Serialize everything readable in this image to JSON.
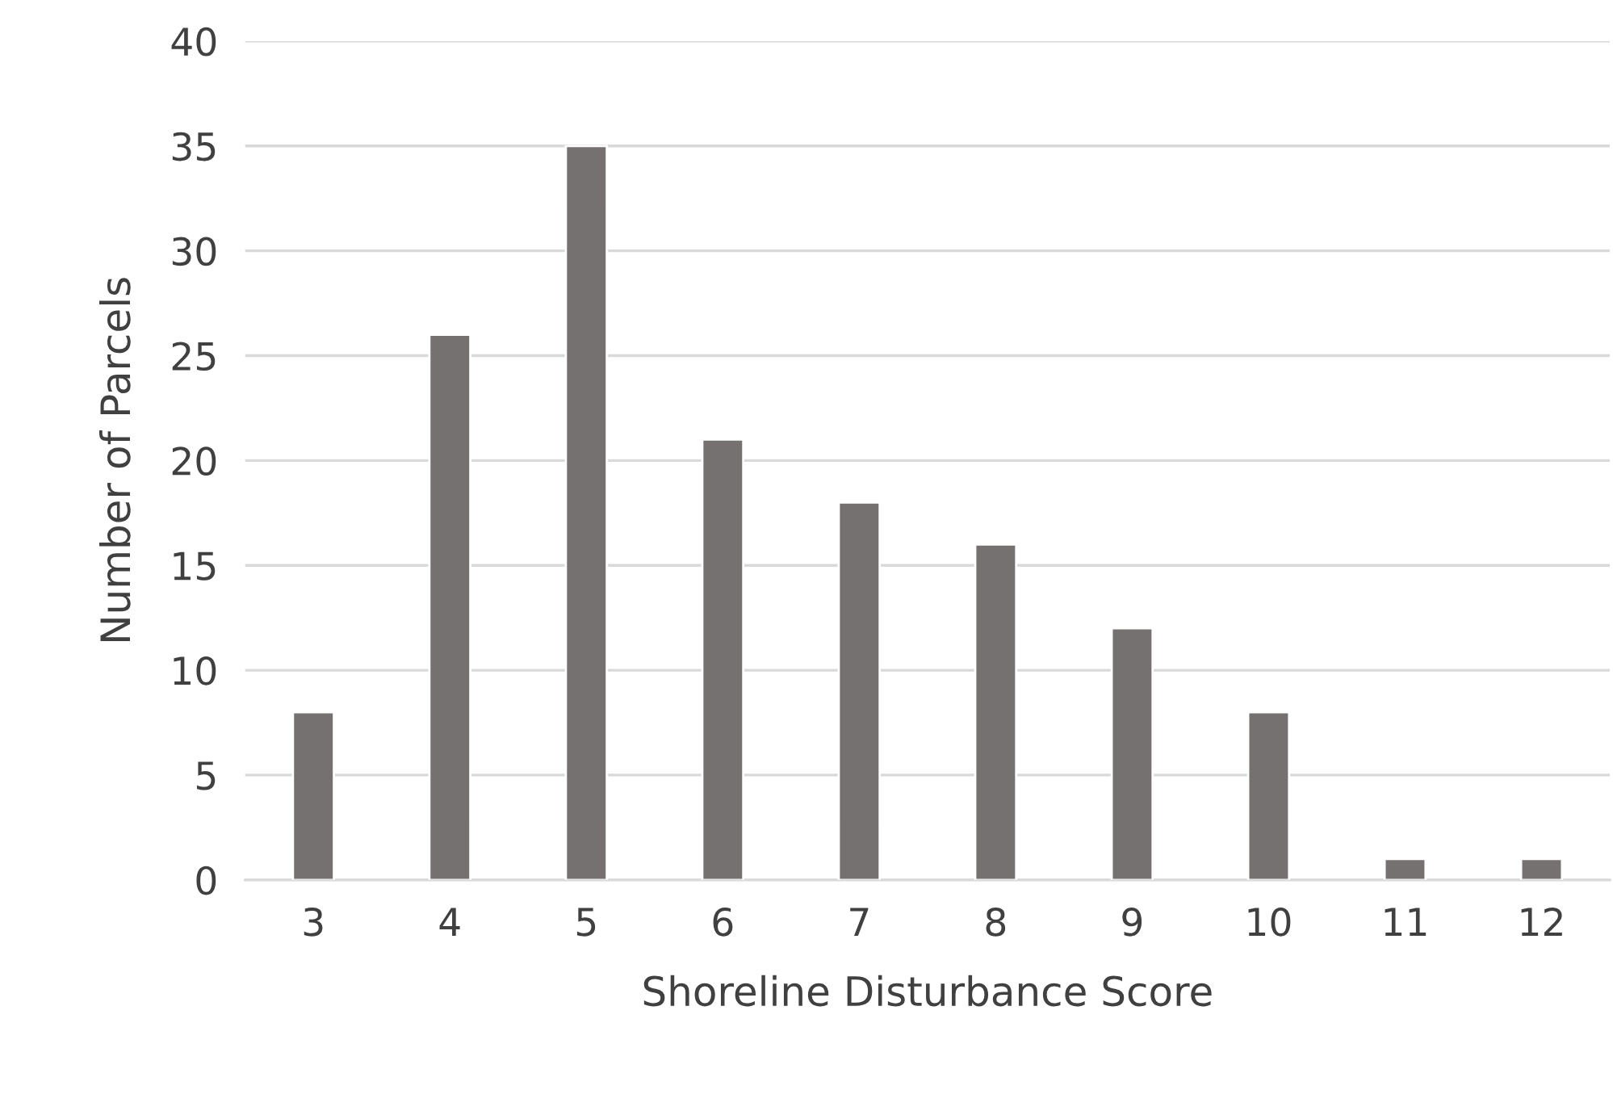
{
  "chart_data": {
    "type": "bar",
    "xlabel": "Shoreline Disturbance Score",
    "ylabel": "Number of Parcels",
    "categories": [
      "3",
      "4",
      "5",
      "6",
      "7",
      "8",
      "9",
      "10",
      "11",
      "12"
    ],
    "values": [
      8,
      26,
      35,
      21,
      18,
      16,
      12,
      8,
      1,
      1
    ],
    "color": "#767171",
    "ylim": [
      0,
      40
    ],
    "yticks": [
      0,
      5,
      10,
      15,
      20,
      25,
      30,
      35,
      40
    ],
    "grid": "y",
    "legend": false
  }
}
